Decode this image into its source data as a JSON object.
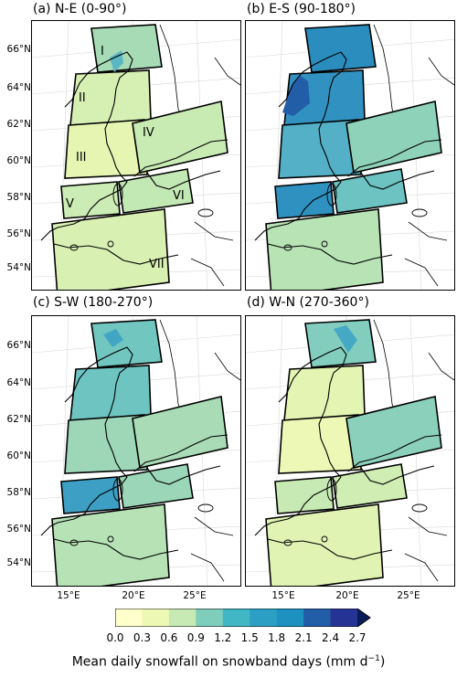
{
  "panels": [
    {
      "title": "(a) N-E (0-90°)",
      "key": "a",
      "colors": {
        "I": "#a6dbb6",
        "II": "#d6efb3",
        "III": "#e6f5b2",
        "IV": "#c8ebb4",
        "V": "#cbecb4",
        "VI": "#c2e8b4",
        "VII": "#d9f0b3",
        "blob": "#5bb6c4"
      },
      "labels": [
        "I",
        "II",
        "III",
        "IV",
        "V",
        "VI",
        "VII"
      ]
    },
    {
      "title": "(b) E-S (90-180°)",
      "key": "b",
      "colors": {
        "I": "#2b8cbe",
        "II": "#3192c1",
        "III": "#53b0c7",
        "IV": "#8fd2ba",
        "V": "#2f91c0",
        "VI": "#6cc3c2",
        "VII": "#b8e3b5",
        "blob": "#225ea8"
      },
      "labels": []
    },
    {
      "title": "(c) S-W (180-270°)",
      "key": "c",
      "colors": {
        "I": "#72c6c0",
        "II": "#6dc4c1",
        "III": "#9dd7b8",
        "IV": "#a8dbb6",
        "V": "#3d9fc4",
        "VI": "#9bd6b8",
        "VII": "#b6e2b5",
        "blob": "#41a6c4"
      },
      "labels": []
    },
    {
      "title": "(d) W-N (270-360°)",
      "key": "d",
      "colors": {
        "I": "#82cdbe",
        "II": "#e3f4b3",
        "III": "#eef8b6",
        "IV": "#8bd0bb",
        "V": "#c7eab4",
        "VI": "#d0edb4",
        "VII": "#e0f3b3",
        "blob": "#45a9c4"
      },
      "labels": []
    }
  ],
  "lat_labels": [
    "66°N",
    "64°N",
    "62°N",
    "60°N",
    "58°N",
    "56°N",
    "54°N"
  ],
  "lon_labels": [
    "15°E",
    "20°E",
    "25°E"
  ],
  "colorbar": {
    "ticks": [
      "0.0",
      "0.3",
      "0.6",
      "0.9",
      "1.2",
      "1.5",
      "1.8",
      "2.1",
      "2.4",
      "2.7"
    ],
    "colors": [
      "#ffffcc",
      "#eef8b5",
      "#c7e9b4",
      "#7fcdbb",
      "#41b6c4",
      "#2c9fc4",
      "#1d91c0",
      "#225ea8",
      "#253494"
    ],
    "extend_color": "#081d58",
    "title": "Mean daily snowfall on snowband days (mm d",
    "title_sup": "−1",
    "title_end": ")"
  }
}
